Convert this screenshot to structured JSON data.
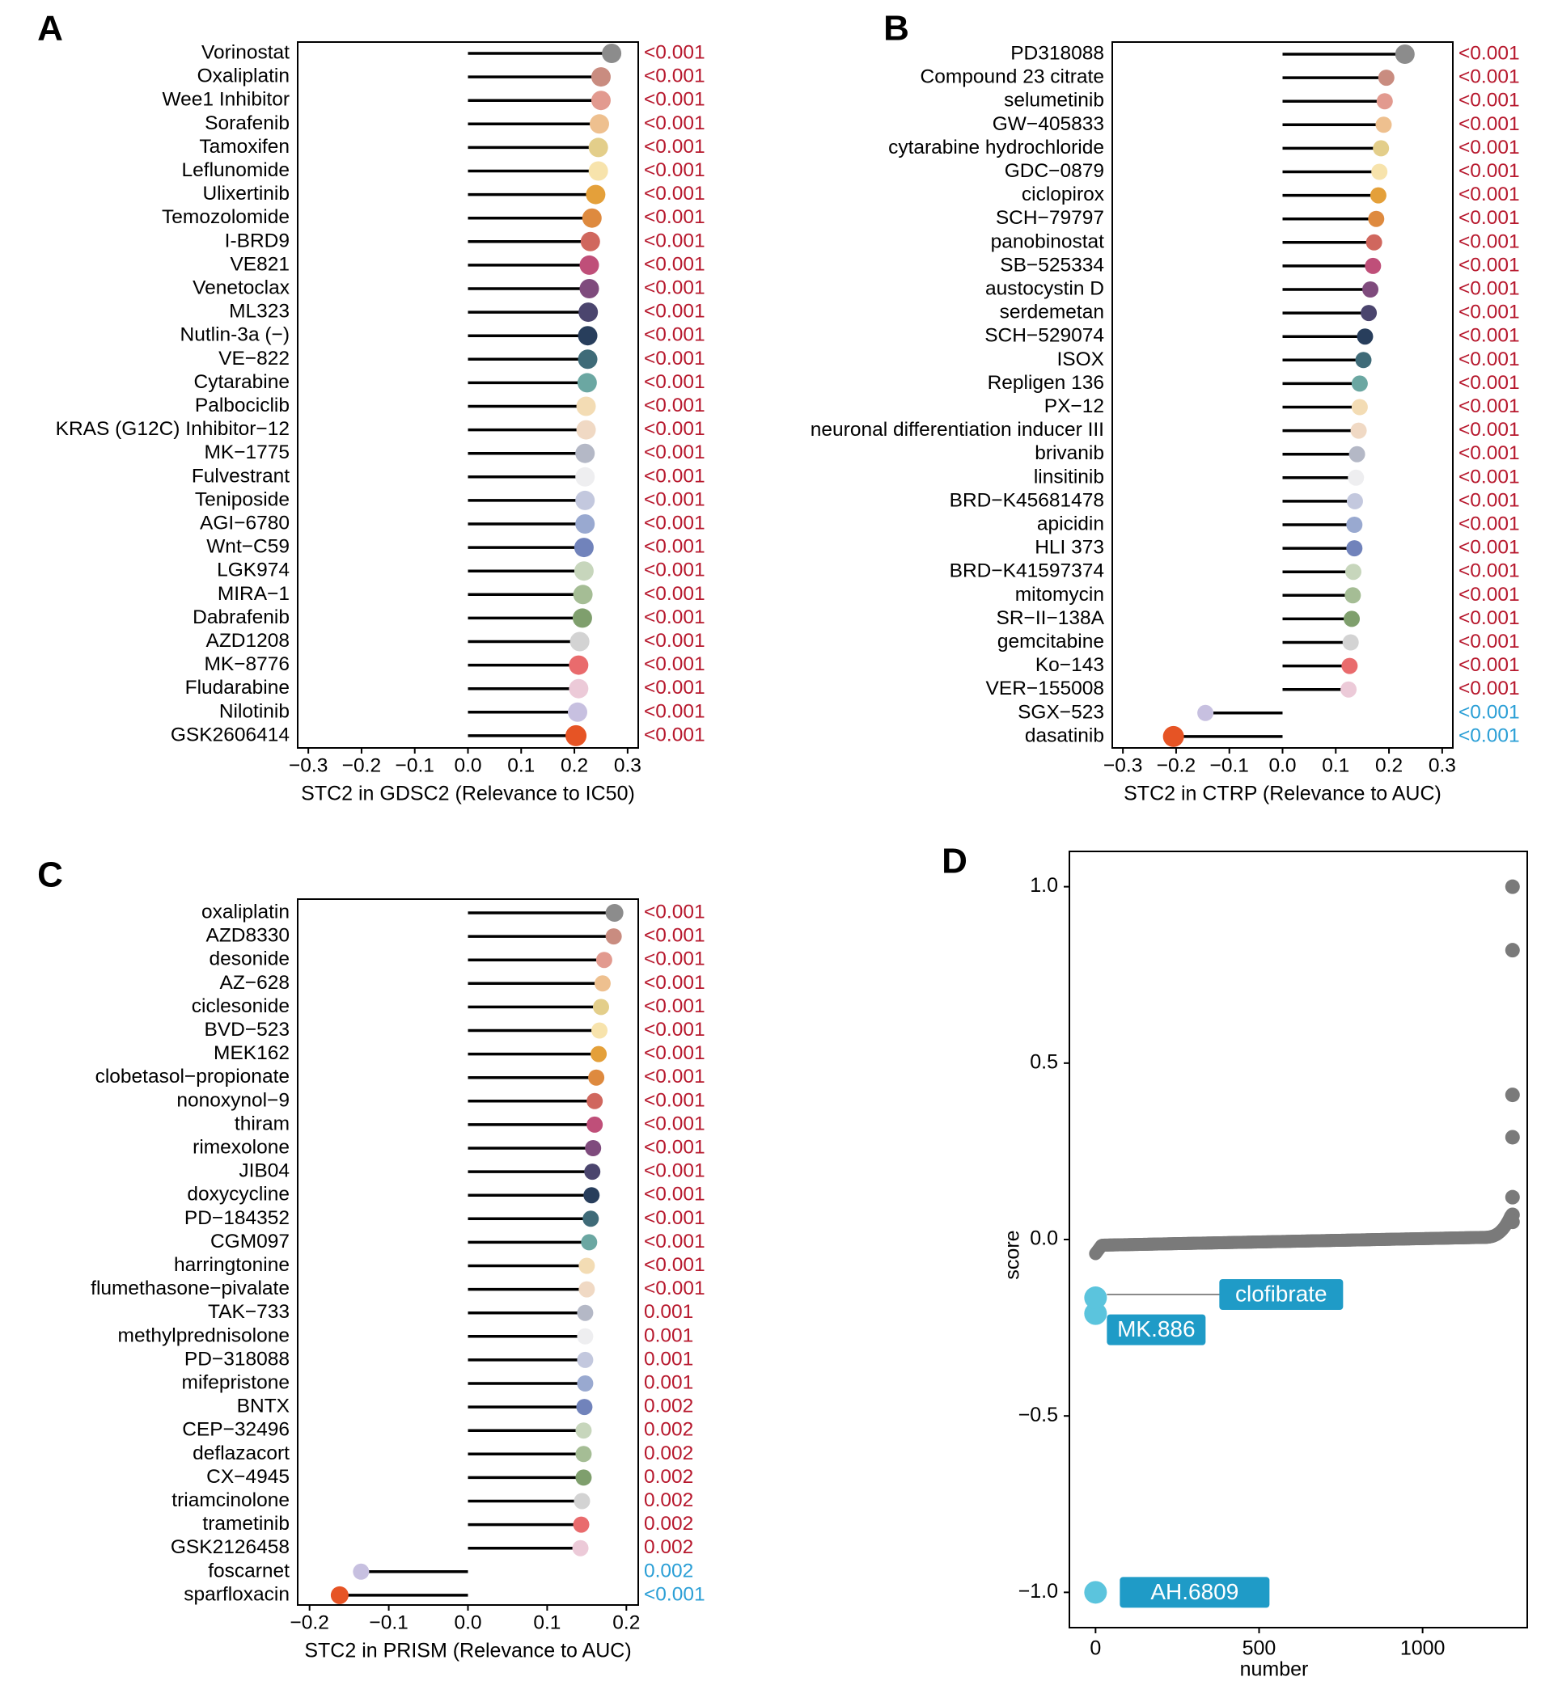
{
  "colors": {
    "sig_pos": "#b7182d",
    "sig_neg": "#2b9fd6",
    "stem": "#000000",
    "scatter_point": "#7a7a7a",
    "highlight_point": "#5bc4dd",
    "label_box": "#1f9bc7",
    "label_text": "#ffffff"
  },
  "palette": [
    "#8c8c8c",
    "#c98c80",
    "#e29a8f",
    "#eec08f",
    "#e3ce8a",
    "#f7e3ac",
    "#e4a03a",
    "#de8a3f",
    "#d0675e",
    "#bf4f79",
    "#7f4b7d",
    "#4b456e",
    "#283e5c",
    "#3f6b78",
    "#6ba7a2",
    "#f3dcb4",
    "#f0d9c4",
    "#b4b8c6",
    "#eeeef0",
    "#c3c8de",
    "#99a9d0",
    "#7183bb",
    "#c7d6bc",
    "#a5bd95",
    "#7f9f6d",
    "#d3d3d3",
    "#e96b6d",
    "#eccad8",
    "#c7c0e0",
    "#e65425"
  ],
  "chart_data": [
    {
      "id": "A",
      "panel_letter": "A",
      "type": "lollipop",
      "xlabel": "STC2 in GDSC2 (Relevance to IC50)",
      "xlim": [
        -0.32,
        0.32
      ],
      "xticks": [
        -0.3,
        -0.2,
        -0.1,
        0.0,
        0.1,
        0.2,
        0.3
      ],
      "xtick_labels": [
        "−0.3",
        "−0.2",
        "−0.1",
        "0.0",
        "0.1",
        "0.2",
        "0.3"
      ],
      "categories": [
        "Vorinostat",
        "Oxaliplatin",
        "Wee1 Inhibitor",
        "Sorafenib",
        "Tamoxifen",
        "Leflunomide",
        "Ulixertinib",
        "Temozolomide",
        "I-BRD9",
        "VE821",
        "Venetoclax",
        "ML323",
        "Nutlin-3a (−)",
        "VE−822",
        "Cytarabine",
        "Palbociclib",
        "KRAS (G12C) Inhibitor−12",
        "MK−1775",
        "Fulvestrant",
        "Teniposide",
        "AGI−6780",
        "Wnt−C59",
        "LGK974",
        "MIRA−1",
        "Dabrafenib",
        "AZD1208",
        "MK−8776",
        "Fludarabine",
        "Nilotinib",
        "GSK2606414"
      ],
      "values": [
        0.27,
        0.25,
        0.25,
        0.247,
        0.245,
        0.245,
        0.24,
        0.233,
        0.23,
        0.228,
        0.228,
        0.226,
        0.225,
        0.225,
        0.224,
        0.222,
        0.222,
        0.22,
        0.22,
        0.22,
        0.22,
        0.218,
        0.218,
        0.216,
        0.215,
        0.21,
        0.208,
        0.208,
        0.206,
        0.203
      ],
      "pvalues": [
        "<0.001",
        "<0.001",
        "<0.001",
        "<0.001",
        "<0.001",
        "<0.001",
        "<0.001",
        "<0.001",
        "<0.001",
        "<0.001",
        "<0.001",
        "<0.001",
        "<0.001",
        "<0.001",
        "<0.001",
        "<0.001",
        "<0.001",
        "<0.001",
        "<0.001",
        "<0.001",
        "<0.001",
        "<0.001",
        "<0.001",
        "<0.001",
        "<0.001",
        "<0.001",
        "<0.001",
        "<0.001",
        "<0.001",
        "<0.001"
      ],
      "dot_sizes": [
        12,
        12,
        12,
        12,
        12,
        12,
        12,
        12,
        12,
        12,
        12,
        12,
        12,
        12,
        12,
        12,
        12,
        12,
        12,
        12,
        12,
        12,
        12,
        12,
        12,
        12,
        12,
        12,
        12,
        13
      ]
    },
    {
      "id": "B",
      "panel_letter": "B",
      "type": "lollipop",
      "xlabel": "STC2 in CTRP (Relevance to AUC)",
      "xlim": [
        -0.32,
        0.32
      ],
      "xticks": [
        -0.3,
        -0.2,
        -0.1,
        0.0,
        0.1,
        0.2,
        0.3
      ],
      "xtick_labels": [
        "−0.3",
        "−0.2",
        "−0.1",
        "0.0",
        "0.1",
        "0.2",
        "0.3"
      ],
      "categories": [
        "PD318088",
        "Compound 23 citrate",
        "selumetinib",
        "GW−405833",
        "cytarabine hydrochloride",
        "GDC−0879",
        "ciclopirox",
        "SCH−79797",
        "panobinostat",
        "SB−525334",
        "austocystin D",
        "serdemetan",
        "SCH−529074",
        "ISOX",
        "Repligen 136",
        "PX−12",
        "neuronal differentiation inducer III",
        "brivanib",
        "linsitinib",
        "BRD−K45681478",
        "apicidin",
        "HLI 373",
        "BRD−K41597374",
        "mitomycin",
        "SR−II−138A",
        "gemcitabine",
        "Ko−143",
        "VER−155008",
        "SGX−523",
        "dasatinib"
      ],
      "values": [
        0.23,
        0.195,
        0.192,
        0.19,
        0.185,
        0.182,
        0.18,
        0.176,
        0.172,
        0.17,
        0.165,
        0.162,
        0.155,
        0.152,
        0.145,
        0.145,
        0.143,
        0.14,
        0.138,
        0.136,
        0.135,
        0.135,
        0.133,
        0.132,
        0.13,
        0.128,
        0.126,
        0.124,
        -0.145,
        -0.205
      ],
      "pvalues": [
        "<0.001",
        "<0.001",
        "<0.001",
        "<0.001",
        "<0.001",
        "<0.001",
        "<0.001",
        "<0.001",
        "<0.001",
        "<0.001",
        "<0.001",
        "<0.001",
        "<0.001",
        "<0.001",
        "<0.001",
        "<0.001",
        "<0.001",
        "<0.001",
        "<0.001",
        "<0.001",
        "<0.001",
        "<0.001",
        "<0.001",
        "<0.001",
        "<0.001",
        "<0.001",
        "<0.001",
        "<0.001",
        "<0.001",
        "<0.001"
      ],
      "dot_sizes": [
        12,
        10,
        10,
        10,
        10,
        10,
        10,
        10,
        10,
        10,
        10,
        10,
        10,
        10,
        10,
        10,
        10,
        10,
        10,
        10,
        10,
        10,
        10,
        10,
        10,
        10,
        10,
        10,
        10,
        13
      ]
    },
    {
      "id": "C",
      "panel_letter": "C",
      "type": "lollipop",
      "xlabel": "STC2 in PRISM (Relevance to AUC)",
      "xlim": [
        -0.215,
        0.215
      ],
      "xticks": [
        -0.2,
        -0.1,
        0.0,
        0.1,
        0.2
      ],
      "xtick_labels": [
        "−0.2",
        "−0.1",
        "0.0",
        "0.1",
        "0.2"
      ],
      "categories": [
        "oxaliplatin",
        "AZD8330",
        "desonide",
        "AZ−628",
        "ciclesonide",
        "BVD−523",
        "MEK162",
        "clobetasol−propionate",
        "nonoxynol−9",
        "thiram",
        "rimexolone",
        "JIB04",
        "doxycycline",
        "PD−184352",
        "CGM097",
        "harringtonine",
        "flumethasone−pivalate",
        "TAK−733",
        "methylprednisolone",
        "PD−318088",
        "mifepristone",
        "BNTX",
        "CEP−32496",
        "deflazacort",
        "CX−4945",
        "triamcinolone",
        "trametinib",
        "GSK2126458",
        "foscarnet",
        "sparfloxacin"
      ],
      "values": [
        0.185,
        0.184,
        0.172,
        0.17,
        0.168,
        0.166,
        0.165,
        0.162,
        0.16,
        0.16,
        0.158,
        0.157,
        0.156,
        0.155,
        0.153,
        0.15,
        0.15,
        0.148,
        0.148,
        0.148,
        0.148,
        0.147,
        0.146,
        0.146,
        0.146,
        0.144,
        0.143,
        0.142,
        -0.135,
        -0.162
      ],
      "pvalues": [
        "<0.001",
        "<0.001",
        "<0.001",
        "<0.001",
        "<0.001",
        "<0.001",
        "<0.001",
        "<0.001",
        "<0.001",
        "<0.001",
        "<0.001",
        "<0.001",
        "<0.001",
        "<0.001",
        "<0.001",
        "<0.001",
        "<0.001",
        "0.001",
        "0.001",
        "0.001",
        "0.001",
        "0.002",
        "0.002",
        "0.002",
        "0.002",
        "0.002",
        "0.002",
        "0.002",
        "0.002",
        "<0.001"
      ],
      "dot_sizes": [
        11,
        10,
        10,
        10,
        10,
        10,
        10,
        10,
        10,
        10,
        10,
        10,
        10,
        10,
        10,
        10,
        10,
        10,
        10,
        10,
        10,
        10,
        10,
        10,
        10,
        10,
        10,
        10,
        10,
        11
      ]
    },
    {
      "id": "D",
      "panel_letter": "D",
      "type": "scatter",
      "xlabel": "number",
      "ylabel": "score",
      "xlim": [
        -80,
        1320
      ],
      "ylim": [
        -1.1,
        1.1
      ],
      "xticks": [
        0,
        500,
        1000
      ],
      "xtick_labels": [
        "0",
        "500",
        "1000"
      ],
      "yticks": [
        -1.0,
        -0.5,
        0.0,
        0.5,
        1.0
      ],
      "ytick_labels": [
        "−1.0",
        "−0.5",
        "0.0",
        "0.5",
        "1.0"
      ],
      "n_points": 1270,
      "curve_range": [
        -0.04,
        0.02
      ],
      "outliers": [
        {
          "x": 1275,
          "y": 1.0
        },
        {
          "x": 1275,
          "y": 0.82
        },
        {
          "x": 1275,
          "y": 0.41
        },
        {
          "x": 1275,
          "y": 0.29
        },
        {
          "x": 1275,
          "y": 0.12
        },
        {
          "x": 1275,
          "y": 0.07
        },
        {
          "x": 1275,
          "y": 0.05
        }
      ],
      "highlighted": [
        {
          "label": "MK.886",
          "x": 0,
          "y": -0.21
        },
        {
          "label": "clofibrate",
          "x": 0,
          "y": -0.165
        },
        {
          "label": "AH.6809",
          "x": 0,
          "y": -1.0
        }
      ]
    }
  ]
}
